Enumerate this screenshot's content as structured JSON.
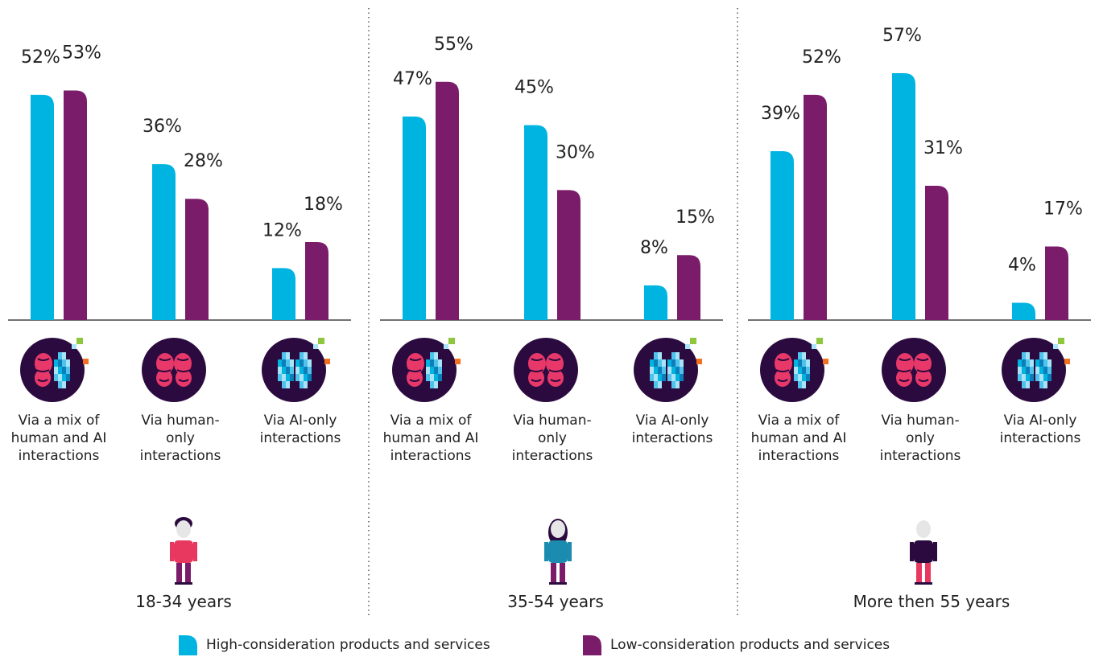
{
  "chart_data": {
    "type": "bar",
    "series": [
      {
        "name": "High-consideration products and services",
        "color": "#00b4e1"
      },
      {
        "name": "Low-consideration products and services",
        "color": "#7b1c6b"
      }
    ],
    "panels": [
      {
        "title": "18-34 years",
        "categories": [
          "Via a mix of human and AI interactions",
          "Via human-only interactions",
          "Via AI-only interactions"
        ],
        "series": [
          {
            "values": [
              52,
              36,
              12
            ],
            "value_labels": [
              "52%",
              "36%",
              "12%"
            ]
          },
          {
            "values": [
              53,
              28,
              18
            ],
            "value_labels": [
              "53%",
              "28%",
              "18%"
            ]
          }
        ]
      },
      {
        "title": "35-54 years",
        "categories": [
          "Via a mix of human and AI interactions",
          "Via human-only interactions",
          "Via AI-only interactions"
        ],
        "series": [
          {
            "values": [
              47,
              45,
              8
            ],
            "value_labels": [
              "47%",
              "45%",
              "8%"
            ]
          },
          {
            "values": [
              55,
              30,
              15
            ],
            "value_labels": [
              "55%",
              "30%",
              "15%"
            ]
          }
        ]
      },
      {
        "title": "More then 55 years",
        "categories": [
          "Via a mix of human and AI interactions",
          "Via human-only interactions",
          "Via AI-only interactions"
        ],
        "series": [
          {
            "values": [
              39,
              57,
              4
            ],
            "value_labels": [
              "39%",
              "57%",
              "4%"
            ]
          },
          {
            "values": [
              52,
              31,
              17
            ],
            "value_labels": [
              "52%",
              "31%",
              "17%"
            ]
          }
        ]
      }
    ]
  }
}
